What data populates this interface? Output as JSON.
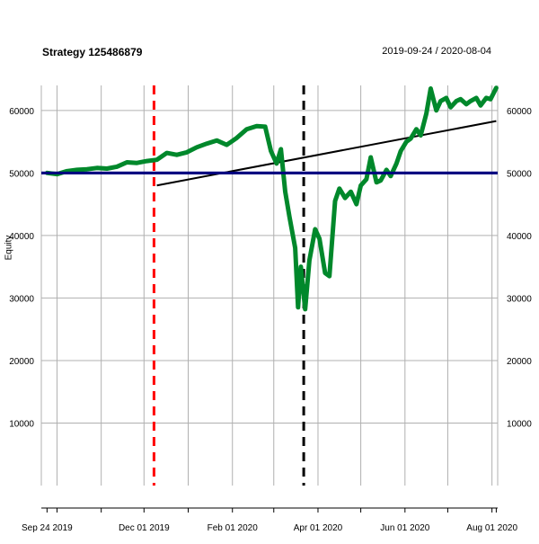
{
  "chart_data": {
    "type": "line",
    "title": "Strategy 125486879",
    "date_range": "2019-09-24 / 2020-08-04",
    "ylabel": "Equity",
    "xlabel": "",
    "ylim": [
      0,
      64000
    ],
    "yticks": [
      10000,
      20000,
      30000,
      40000,
      50000,
      60000
    ],
    "x_tick_labels": [
      {
        "date": "2019-09-24",
        "label": "Sep 24 2019"
      },
      {
        "date": "2019-12-01",
        "label": "Dec 01 2019"
      },
      {
        "date": "2020-02-01",
        "label": "Feb 01 2020"
      },
      {
        "date": "2020-04-01",
        "label": "Apr 01 2020"
      },
      {
        "date": "2020-06-01",
        "label": "Jun 01 2020"
      },
      {
        "date": "2020-08-01",
        "label": "Aug 01 2020"
      }
    ],
    "grid": true,
    "series": [
      {
        "color": "#00882b",
        "points": [
          [
            "2019-09-24",
            50000
          ],
          [
            "2019-10-01",
            49800
          ],
          [
            "2019-10-08",
            50300
          ],
          [
            "2019-10-15",
            50500
          ],
          [
            "2019-10-22",
            50600
          ],
          [
            "2019-10-29",
            50800
          ],
          [
            "2019-11-05",
            50700
          ],
          [
            "2019-11-12",
            51000
          ],
          [
            "2019-11-19",
            51700
          ],
          [
            "2019-11-26",
            51600
          ],
          [
            "2019-12-03",
            51900
          ],
          [
            "2019-12-10",
            52100
          ],
          [
            "2019-12-17",
            53200
          ],
          [
            "2019-12-24",
            52900
          ],
          [
            "2019-12-31",
            53300
          ],
          [
            "2020-01-07",
            54100
          ],
          [
            "2020-01-14",
            54700
          ],
          [
            "2020-01-21",
            55200
          ],
          [
            "2020-01-28",
            54500
          ],
          [
            "2020-02-04",
            55600
          ],
          [
            "2020-02-11",
            57000
          ],
          [
            "2020-02-18",
            57500
          ],
          [
            "2020-02-24",
            57400
          ],
          [
            "2020-02-28",
            53500
          ],
          [
            "2020-03-03",
            51500
          ],
          [
            "2020-03-06",
            53800
          ],
          [
            "2020-03-09",
            47000
          ],
          [
            "2020-03-12",
            43000
          ],
          [
            "2020-03-16",
            38000
          ],
          [
            "2020-03-18",
            28500
          ],
          [
            "2020-03-20",
            35000
          ],
          [
            "2020-03-23",
            28200
          ],
          [
            "2020-03-26",
            36000
          ],
          [
            "2020-03-30",
            41000
          ],
          [
            "2020-04-02",
            39500
          ],
          [
            "2020-04-06",
            34000
          ],
          [
            "2020-04-09",
            33500
          ],
          [
            "2020-04-13",
            45500
          ],
          [
            "2020-04-16",
            47500
          ],
          [
            "2020-04-20",
            46000
          ],
          [
            "2020-04-24",
            47000
          ],
          [
            "2020-04-28",
            45000
          ],
          [
            "2020-05-01",
            48000
          ],
          [
            "2020-05-05",
            49000
          ],
          [
            "2020-05-08",
            52500
          ],
          [
            "2020-05-12",
            48500
          ],
          [
            "2020-05-15",
            48800
          ],
          [
            "2020-05-19",
            50500
          ],
          [
            "2020-05-22",
            49500
          ],
          [
            "2020-05-26",
            51500
          ],
          [
            "2020-05-29",
            53500
          ],
          [
            "2020-06-02",
            55000
          ],
          [
            "2020-06-05",
            55500
          ],
          [
            "2020-06-09",
            57000
          ],
          [
            "2020-06-12",
            56000
          ],
          [
            "2020-06-16",
            59500
          ],
          [
            "2020-06-19",
            63500
          ],
          [
            "2020-06-23",
            60000
          ],
          [
            "2020-06-26",
            61500
          ],
          [
            "2020-06-30",
            62000
          ],
          [
            "2020-07-03",
            60500
          ],
          [
            "2020-07-07",
            61500
          ],
          [
            "2020-07-10",
            61800
          ],
          [
            "2020-07-14",
            61000
          ],
          [
            "2020-07-17",
            61500
          ],
          [
            "2020-07-21",
            62000
          ],
          [
            "2020-07-24",
            60800
          ],
          [
            "2020-07-28",
            62000
          ],
          [
            "2020-07-31",
            61800
          ],
          [
            "2020-08-04",
            63600
          ]
        ]
      }
    ],
    "reference_lines": [
      {
        "type": "horizontal",
        "y": 50000,
        "color": "#000080"
      },
      {
        "type": "trend",
        "color": "#000000",
        "from": [
          "2019-12-10",
          48000
        ],
        "to": [
          "2020-08-04",
          58300
        ]
      },
      {
        "type": "vertical",
        "x": "2019-12-08",
        "color": "#ff0000",
        "dashed": true
      },
      {
        "type": "vertical",
        "x": "2020-03-22",
        "color": "#000000",
        "dashed": true
      }
    ],
    "colors": {
      "equity": "#00882b",
      "baseline": "#000080",
      "trend": "#000000",
      "marker1": "#ff0000",
      "marker2": "#000000",
      "grid": "#b0b0b0"
    }
  }
}
